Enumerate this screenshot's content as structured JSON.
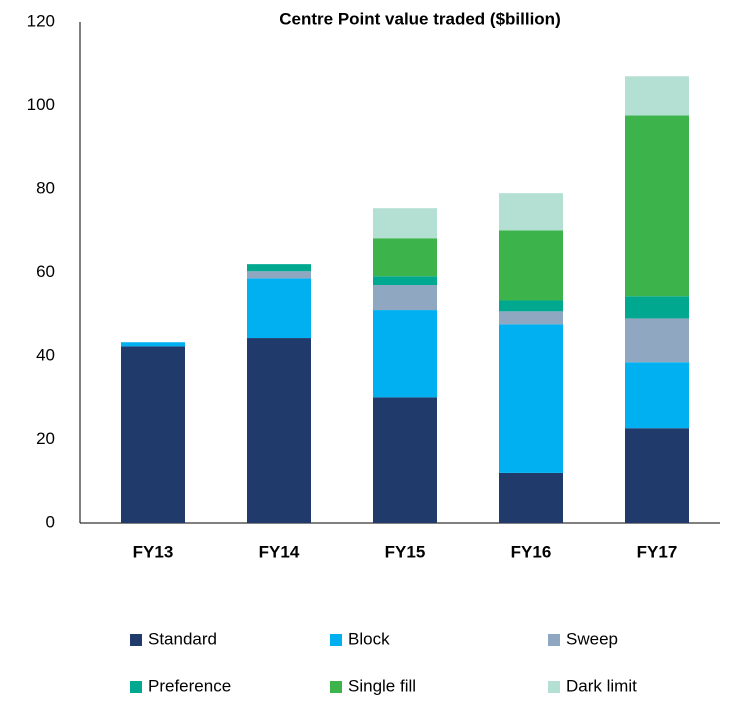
{
  "chart_data": {
    "type": "stacked_bar",
    "title": "Centre Point value traded ($billion)",
    "categories": [
      "FY13",
      "FY14",
      "FY15",
      "FY16",
      "FY17"
    ],
    "series": [
      {
        "name": "Standard",
        "color": "#1f3a6b",
        "values": [
          42.3,
          44.3,
          30.1,
          12.0,
          22.7
        ]
      },
      {
        "name": "Block",
        "color": "#00b0f0",
        "values": [
          1.0,
          14.3,
          20.9,
          35.6,
          15.8
        ]
      },
      {
        "name": "Sweep",
        "color": "#8fa7c0",
        "values": [
          0,
          1.7,
          6.0,
          3.1,
          10.5
        ]
      },
      {
        "name": "Preference",
        "color": "#00a88f",
        "values": [
          0,
          1.7,
          2.1,
          2.6,
          5.3
        ]
      },
      {
        "name": "Single fill",
        "color": "#3cb44b",
        "values": [
          0,
          0,
          9.1,
          16.8,
          43.3
        ]
      },
      {
        "name": "Dark limit",
        "color": "#b3e0d2",
        "values": [
          0,
          0,
          7.2,
          8.9,
          9.4
        ]
      }
    ],
    "ylim": [
      0,
      120
    ],
    "yticks": [
      0,
      20,
      40,
      60,
      80,
      100,
      120
    ],
    "grid": false,
    "legend": "bottom"
  }
}
